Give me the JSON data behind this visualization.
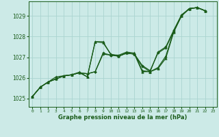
{
  "bg_color": "#cceae7",
  "grid_color": "#aad4d0",
  "line_color": "#1a5c1a",
  "xlabel": "Graphe pression niveau de la mer (hPa)",
  "xlim": [
    -0.5,
    23.5
  ],
  "ylim": [
    1024.6,
    1029.7
  ],
  "yticks": [
    1025,
    1026,
    1027,
    1028,
    1029
  ],
  "xticks": [
    0,
    1,
    2,
    3,
    4,
    5,
    6,
    7,
    8,
    9,
    10,
    11,
    12,
    13,
    14,
    15,
    16,
    17,
    18,
    19,
    20,
    21,
    22,
    23
  ],
  "lines": [
    {
      "x": [
        0,
        1,
        2,
        3,
        4,
        5,
        6,
        7,
        8,
        9,
        10,
        11,
        12,
        13,
        14,
        15,
        16,
        17,
        18,
        19,
        20,
        21,
        22
      ],
      "y": [
        1025.1,
        1025.55,
        1025.8,
        1026.05,
        1026.1,
        1026.15,
        1026.25,
        1026.05,
        1027.75,
        1027.7,
        1027.15,
        1027.05,
        1027.2,
        1027.15,
        1026.3,
        1026.3,
        1026.5,
        1027.05,
        1028.25,
        1029.0,
        1029.35,
        1029.4,
        1029.25
      ],
      "marker": "^",
      "ms": 2.5,
      "lw": 0.9
    },
    {
      "x": [
        0,
        1,
        2,
        3,
        4,
        5,
        6,
        7,
        8,
        9,
        10,
        11,
        12,
        13,
        14,
        15,
        16,
        17,
        18,
        19,
        20,
        21,
        22
      ],
      "y": [
        1025.1,
        1025.55,
        1025.8,
        1025.95,
        1026.1,
        1026.15,
        1026.25,
        1026.2,
        1026.3,
        1027.15,
        1027.1,
        1027.05,
        1027.2,
        1027.15,
        1026.6,
        1026.35,
        1027.2,
        1027.45,
        1028.25,
        1029.0,
        1029.35,
        1029.4,
        1029.25
      ],
      "marker": "D",
      "ms": 1.8,
      "lw": 0.9
    },
    {
      "x": [
        0,
        1,
        2,
        3,
        4,
        5,
        6,
        7,
        8,
        9,
        10,
        11,
        12,
        13,
        14,
        15,
        16,
        17,
        18,
        19,
        20,
        21,
        22
      ],
      "y": [
        1025.1,
        1025.55,
        1025.8,
        1025.95,
        1026.1,
        1026.15,
        1026.25,
        1026.2,
        1026.3,
        1027.2,
        1027.1,
        1027.05,
        1027.2,
        1027.15,
        1026.55,
        1026.3,
        1027.25,
        1027.5,
        1028.3,
        1029.05,
        1029.35,
        1029.4,
        1029.25
      ],
      "marker": "D",
      "ms": 1.8,
      "lw": 0.9
    },
    {
      "x": [
        0,
        1,
        2,
        3,
        4,
        5,
        6,
        7,
        8,
        9,
        10,
        11,
        12,
        13,
        14,
        15,
        16,
        17,
        18,
        19,
        20,
        21,
        22
      ],
      "y": [
        1025.1,
        1025.55,
        1025.8,
        1025.95,
        1026.1,
        1026.15,
        1026.28,
        1026.05,
        1027.75,
        1027.75,
        1027.12,
        1027.1,
        1027.25,
        1027.2,
        1026.35,
        1026.3,
        1026.45,
        1026.95,
        1028.2,
        1029.0,
        1029.35,
        1029.4,
        1029.25
      ],
      "marker": "^",
      "ms": 2.5,
      "lw": 0.9
    }
  ]
}
